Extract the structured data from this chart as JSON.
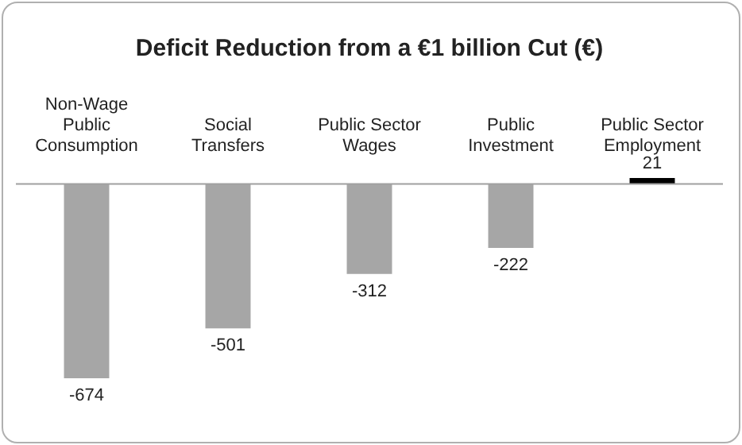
{
  "chart_data": {
    "type": "bar",
    "title": "Deficit Reduction from a €1 billion Cut (€)",
    "categories": [
      "Non-Wage Public Consumption",
      "Social Transfers",
      "Public Sector Wages",
      "Public Investment",
      "Public Sector Employment"
    ],
    "values": [
      -674,
      -501,
      -312,
      -222,
      21
    ],
    "colors": [
      "#a6a6a6",
      "#a6a6a6",
      "#a6a6a6",
      "#a6a6a6",
      "#000000"
    ],
    "data_labels": true
  }
}
